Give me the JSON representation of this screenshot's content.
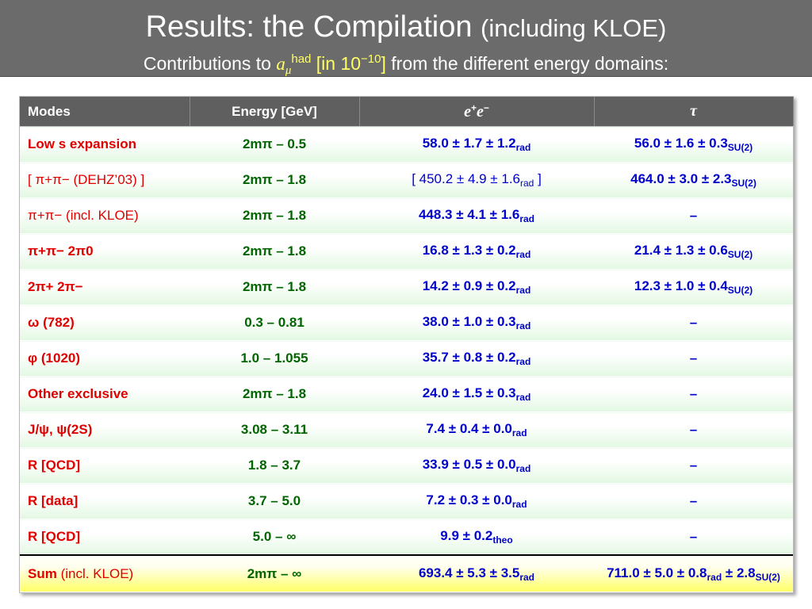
{
  "header": {
    "title": "Results: the Compilation",
    "title_paren": "(including KLOE)",
    "subtitle_pre": "Contributions to",
    "subtitle_a": "a",
    "subtitle_mu": "μ",
    "subtitle_had": "had",
    "subtitle_units_pre": "[in 10",
    "subtitle_units_exp": "−10",
    "subtitle_units_post": "]",
    "subtitle_post": "from the different energy domains:"
  },
  "table": {
    "headers": {
      "modes": "Modes",
      "energy": "Energy [GeV]",
      "ee_e1": "e",
      "ee_plus": "+",
      "ee_e2": "e",
      "ee_minus": "−",
      "tau": "τ"
    },
    "rows": [
      {
        "mode": "Low s expansion",
        "energy": "2mπ – 0.5",
        "ee": "58.0 ± 1.7 ± 1.2",
        "ee_sub": "rad",
        "tau": "56.0 ± 1.6 ± 0.3",
        "tau_sub": "SU(2)"
      },
      {
        "mode": "[ π+π− (DEHZ’03) ]",
        "energy": "2mπ – 1.8",
        "ee": "[ 450.2 ± 4.9 ± 1.6",
        "ee_sub": "rad",
        "ee_tail": " ]",
        "tau": "464.0 ± 3.0 ± 2.3",
        "tau_sub": "SU(2)"
      },
      {
        "mode": "π+π− (incl. KLOE)",
        "energy": "2mπ – 1.8",
        "ee": "448.3 ± 4.1 ± 1.6",
        "ee_sub": "rad",
        "tau": "–"
      },
      {
        "mode": "π+π− 2π0",
        "energy": "2mπ – 1.8",
        "ee": "16.8 ± 1.3 ± 0.2",
        "ee_sub": "rad",
        "tau": "21.4 ± 1.3 ± 0.6",
        "tau_sub": "SU(2)"
      },
      {
        "mode": "2π+ 2π−",
        "energy": "2mπ – 1.8",
        "ee": "14.2 ± 0.9 ± 0.2",
        "ee_sub": "rad",
        "tau": "12.3 ± 1.0 ± 0.4",
        "tau_sub": "SU(2)"
      },
      {
        "mode": "ω (782)",
        "energy": "0.3 – 0.81",
        "ee": "38.0 ± 1.0 ± 0.3",
        "ee_sub": "rad",
        "tau": "–"
      },
      {
        "mode": "φ (1020)",
        "energy": "1.0 – 1.055",
        "ee": "35.7 ± 0.8 ± 0.2",
        "ee_sub": "rad",
        "tau": "–"
      },
      {
        "mode": "Other exclusive",
        "energy": "2mπ – 1.8",
        "ee": "24.0 ± 1.5 ± 0.3",
        "ee_sub": "rad",
        "tau": "–"
      },
      {
        "mode": "J/ψ, ψ(2S)",
        "energy": "3.08 – 3.11",
        "ee": "7.4 ± 0.4 ± 0.0",
        "ee_sub": "rad",
        "tau": "–"
      },
      {
        "mode": "R [QCD]",
        "energy": "1.8 – 3.7",
        "ee": "33.9 ± 0.5 ± 0.0",
        "ee_sub": "rad",
        "tau": "–"
      },
      {
        "mode": "R [data]",
        "energy": "3.7 – 5.0",
        "ee": "7.2 ± 0.3 ± 0.0",
        "ee_sub": "rad",
        "tau": "–"
      },
      {
        "mode": "R [QCD]",
        "energy": "5.0 – ∞",
        "ee": "9.9 ± 0.2",
        "ee_sub": "theo",
        "tau": "–"
      }
    ],
    "sum": {
      "mode_bold": "Sum",
      "mode_rest": "(incl. KLOE)",
      "energy": "2mπ – ∞",
      "ee": "693.4 ± 5.3 ± 3.5",
      "ee_sub": "rad",
      "tau": "711.0 ± 5.0 ± 0.8",
      "tau_sub": "rad",
      "tau_mid": " ± 2.8",
      "tau_sub2": "SU(2)"
    }
  },
  "colors": {
    "header_bg": "#6b6b6b",
    "table_header_bg": "#5f5f5f",
    "mode_text": "#e00000",
    "energy_text": "#006400",
    "value_text": "#0000cc",
    "sum_highlight": "#ffff66",
    "units_text": "#ffff66"
  }
}
